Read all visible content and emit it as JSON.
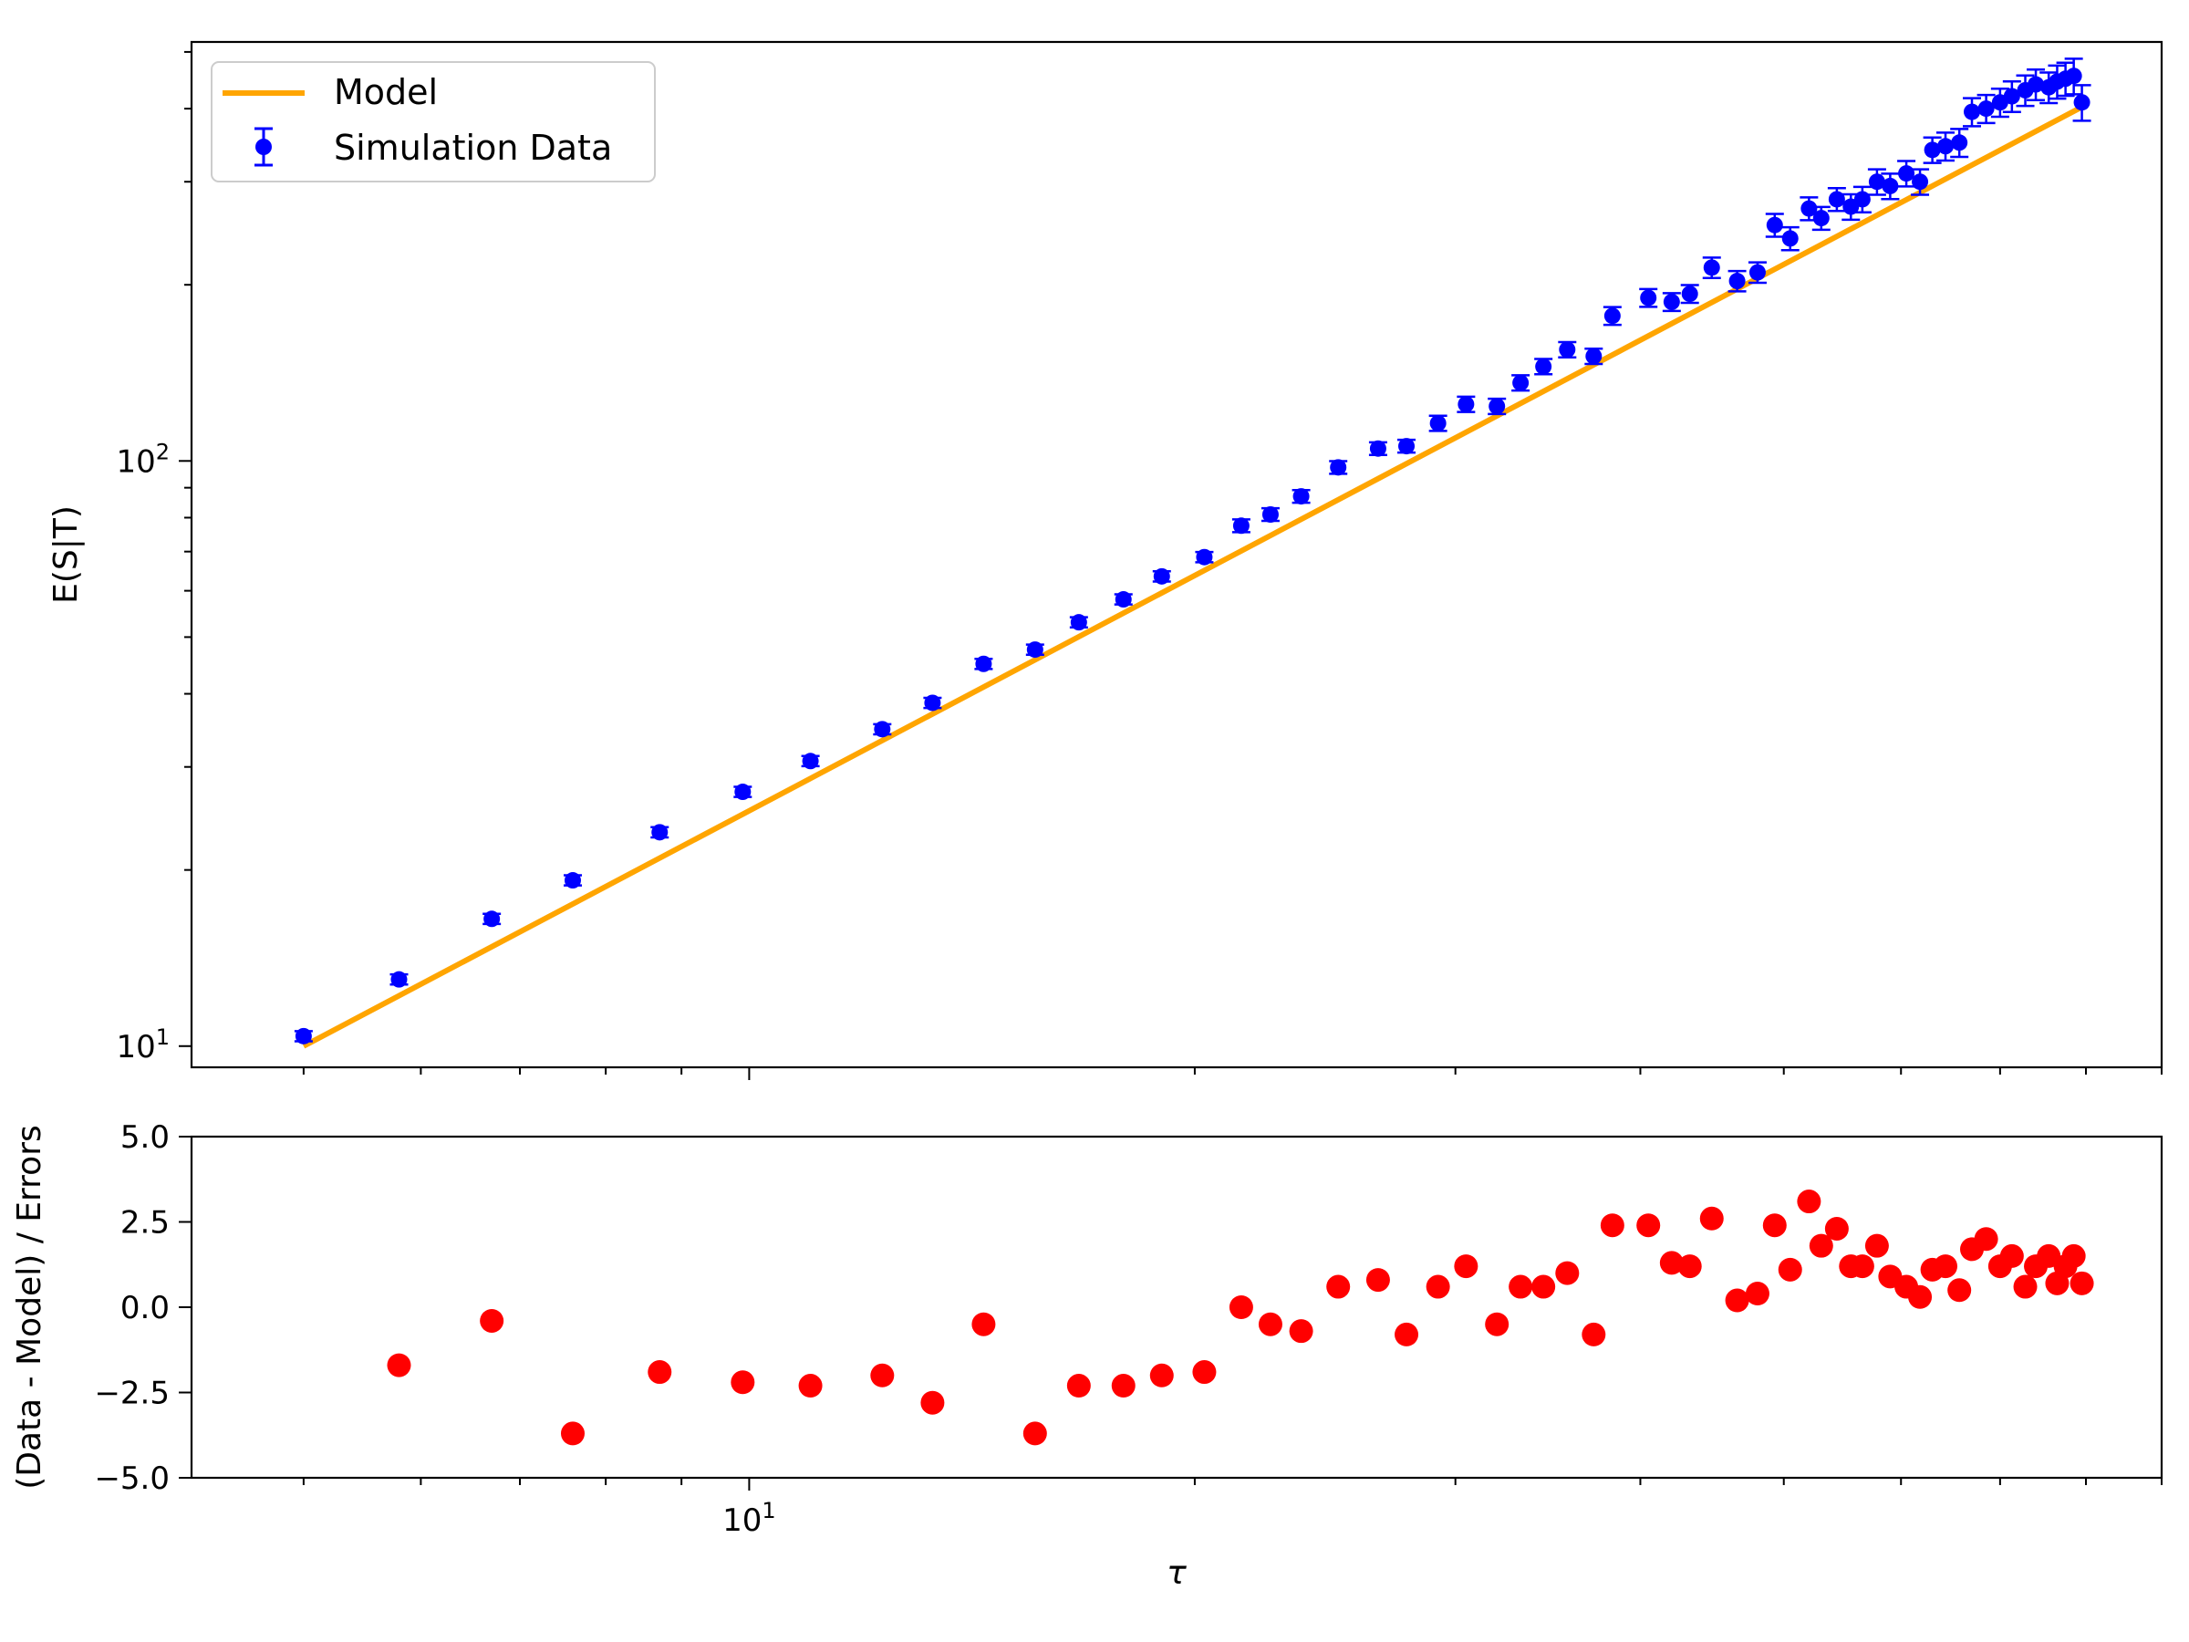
{
  "chart_data": [
    {
      "type": "line",
      "panel": "top",
      "ylabel": "E(S|T)",
      "xlabel": "",
      "xscale": "log",
      "yscale": "log",
      "xlim": [
        4.2,
        90
      ],
      "ylim": [
        9.2,
        520
      ],
      "yticks": [
        {
          "value": 10,
          "base": "10",
          "exp": "1"
        },
        {
          "value": 100,
          "base": "10",
          "exp": "2"
        }
      ],
      "xticks": [],
      "grid": false,
      "legend": {
        "position": "top-left",
        "entries": [
          "Model",
          "Simulation Data"
        ]
      },
      "colors": {
        "model": "#ffa500",
        "data": "#0000ff"
      },
      "series": [
        {
          "name": "Model",
          "style": "line",
          "x": [
            5,
            80
          ],
          "y": [
            10.0,
            406.0
          ]
        },
        {
          "name": "Simulation Data",
          "style": "errorbar",
          "x": [
            5.0,
            5.8,
            6.7,
            7.6,
            8.7,
            9.9,
            11.0,
            12.3,
            13.3,
            14.4,
            15.6,
            16.7,
            17.9,
            19.0,
            20.3,
            21.5,
            22.5,
            23.6,
            25.0,
            26.6,
            27.8,
            29.2,
            30.5,
            32.0,
            33.2,
            34.4,
            35.7,
            37.2,
            38.3,
            40.5,
            42.0,
            43.2,
            44.7,
            46.5,
            48.0,
            49.3,
            50.5,
            52.0,
            53.0,
            54.3,
            55.5,
            56.5,
            57.8,
            59.0,
            60.5,
            61.8,
            63.0,
            64.3,
            65.7,
            67.0,
            68.5,
            70.0,
            71.3,
            72.8,
            74.0,
            75.5,
            76.5,
            77.5,
            78.5,
            79.5
          ],
          "y": [
            10.4,
            13.0,
            16.5,
            19.2,
            23.2,
            27.2,
            30.7,
            34.8,
            38.6,
            45.0,
            47.6,
            53.0,
            58.0,
            63.5,
            68.5,
            77.5,
            81.0,
            87.0,
            97.5,
            105.0,
            106.0,
            116.0,
            125.0,
            124.0,
            136.0,
            145.0,
            155.0,
            151.0,
            177.0,
            190.0,
            187.0,
            193.0,
            214.0,
            203.0,
            210.0,
            253.0,
            240.0,
            270.0,
            260.0,
            280.0,
            272.0,
            280.0,
            300.0,
            295.0,
            310.0,
            300.0,
            340.0,
            345.0,
            350.0,
            395.0,
            400.0,
            410.0,
            420.0,
            430.0,
            440.0,
            435.0,
            445.0,
            450.0,
            455.0,
            410.0
          ],
          "yerr_rel": [
            0.02,
            0.02,
            0.02,
            0.02,
            0.02,
            0.02,
            0.02,
            0.02,
            0.02,
            0.02,
            0.02,
            0.02,
            0.02,
            0.02,
            0.02,
            0.025,
            0.025,
            0.025,
            0.025,
            0.025,
            0.025,
            0.03,
            0.03,
            0.03,
            0.03,
            0.03,
            0.03,
            0.03,
            0.035,
            0.035,
            0.035,
            0.035,
            0.04,
            0.04,
            0.04,
            0.045,
            0.045,
            0.045,
            0.045,
            0.045,
            0.05,
            0.05,
            0.05,
            0.05,
            0.05,
            0.05,
            0.05,
            0.055,
            0.055,
            0.055,
            0.055,
            0.055,
            0.06,
            0.06,
            0.06,
            0.06,
            0.065,
            0.065,
            0.07,
            0.07
          ]
        }
      ]
    },
    {
      "type": "scatter",
      "panel": "bottom",
      "ylabel": "(Data - Model) / Errors",
      "xlabel": "τ",
      "xscale": "log",
      "xlim": [
        4.2,
        90
      ],
      "ylim": [
        -5.0,
        5.0
      ],
      "yticks": [
        "5.0",
        "2.5",
        "0.0",
        "−2.5",
        "−5.0"
      ],
      "ytick_values": [
        5.0,
        2.5,
        0.0,
        -2.5,
        -5.0
      ],
      "xticks": [
        {
          "value": 10,
          "base": "10",
          "exp": "1"
        }
      ],
      "grid": false,
      "colors": {
        "points": "#ff0000"
      },
      "series": [
        {
          "style": "scatter",
          "x": [
            5.8,
            6.7,
            7.6,
            8.7,
            9.9,
            11.0,
            12.3,
            13.3,
            14.4,
            15.6,
            16.7,
            17.9,
            19.0,
            20.3,
            21.5,
            22.5,
            23.6,
            25.0,
            26.6,
            27.8,
            29.2,
            30.5,
            32.0,
            33.2,
            34.4,
            35.7,
            37.2,
            38.3,
            40.5,
            42.0,
            43.2,
            44.7,
            46.5,
            48.0,
            49.3,
            50.5,
            52.0,
            53.0,
            54.3,
            55.5,
            56.5,
            57.8,
            59.0,
            60.5,
            61.8,
            63.0,
            64.3,
            65.7,
            67.0,
            68.5,
            70.0,
            71.3,
            72.8,
            74.0,
            75.5,
            76.5,
            77.5,
            78.5,
            79.5
          ],
          "y": [
            -1.7,
            -0.4,
            -3.7,
            -1.9,
            -2.2,
            -2.3,
            -2.0,
            -2.8,
            -0.5,
            -3.7,
            -2.3,
            -2.3,
            -2.0,
            -1.9,
            0.0,
            -0.5,
            -0.7,
            0.6,
            0.8,
            -0.8,
            0.6,
            1.2,
            -0.5,
            0.6,
            0.6,
            1.0,
            -0.8,
            2.4,
            2.4,
            1.3,
            1.2,
            2.6,
            0.2,
            0.4,
            2.4,
            1.1,
            3.1,
            1.8,
            2.3,
            1.2,
            1.2,
            1.8,
            0.9,
            0.6,
            0.3,
            1.1,
            1.2,
            0.5,
            1.7,
            2.0,
            1.2,
            1.5,
            0.6,
            1.2,
            1.5,
            0.7,
            1.2,
            1.5,
            0.7
          ]
        }
      ]
    }
  ]
}
